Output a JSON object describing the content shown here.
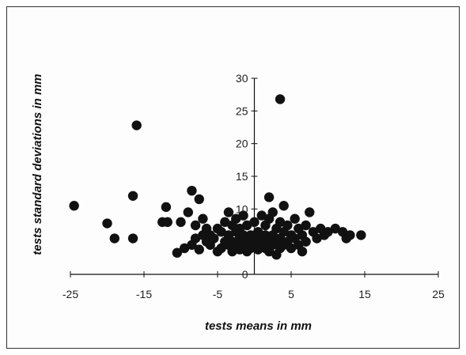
{
  "chart_data": {
    "type": "scatter",
    "xlabel": "tests means in mm",
    "ylabel": "tests standard deviations in mm",
    "xlim": [
      -25,
      25
    ],
    "ylim": [
      0,
      30
    ],
    "x_ticks": [
      "-25",
      "-15",
      "-5",
      "5",
      "15",
      "25"
    ],
    "y_ticks": [
      "0",
      "5",
      "10",
      "15",
      "20",
      "25",
      "30"
    ],
    "grid": false,
    "legend": "none",
    "marker_color": "#111111",
    "points": [
      {
        "x": -24.5,
        "y": 10.5
      },
      {
        "x": -20,
        "y": 7.8
      },
      {
        "x": -19,
        "y": 5.5
      },
      {
        "x": -16.5,
        "y": 5.5
      },
      {
        "x": -16.5,
        "y": 12
      },
      {
        "x": -16,
        "y": 22.8
      },
      {
        "x": -12.5,
        "y": 8
      },
      {
        "x": -12,
        "y": 10.3
      },
      {
        "x": -11.8,
        "y": 8
      },
      {
        "x": -10.5,
        "y": 3.3
      },
      {
        "x": -10,
        "y": 8
      },
      {
        "x": -9.5,
        "y": 4
      },
      {
        "x": -9,
        "y": 9.5
      },
      {
        "x": -8.5,
        "y": 12.8
      },
      {
        "x": -8.5,
        "y": 4.5
      },
      {
        "x": -8,
        "y": 5.5
      },
      {
        "x": -8,
        "y": 7.5
      },
      {
        "x": -7.5,
        "y": 11.5
      },
      {
        "x": -7.5,
        "y": 3.8
      },
      {
        "x": -7,
        "y": 6
      },
      {
        "x": -7,
        "y": 8.5
      },
      {
        "x": -6.5,
        "y": 5
      },
      {
        "x": -6.5,
        "y": 7
      },
      {
        "x": -6,
        "y": 4.5
      },
      {
        "x": -6,
        "y": 6
      },
      {
        "x": -5.5,
        "y": 5.5
      },
      {
        "x": -5,
        "y": 3.5
      },
      {
        "x": -5,
        "y": 7
      },
      {
        "x": -4.5,
        "y": 4
      },
      {
        "x": -4.5,
        "y": 6.5
      },
      {
        "x": -4,
        "y": 5
      },
      {
        "x": -4,
        "y": 8
      },
      {
        "x": -3.5,
        "y": 4.5
      },
      {
        "x": -3.5,
        "y": 6
      },
      {
        "x": -3.5,
        "y": 9.5
      },
      {
        "x": -3,
        "y": 3.5
      },
      {
        "x": -3,
        "y": 5
      },
      {
        "x": -3,
        "y": 7.5
      },
      {
        "x": -2.5,
        "y": 4.5
      },
      {
        "x": -2.5,
        "y": 6.5
      },
      {
        "x": -2.5,
        "y": 8.5
      },
      {
        "x": -2,
        "y": 3.8
      },
      {
        "x": -2,
        "y": 5.5
      },
      {
        "x": -2,
        "y": 7
      },
      {
        "x": -1.5,
        "y": 4.5
      },
      {
        "x": -1.5,
        "y": 6
      },
      {
        "x": -1.5,
        "y": 9
      },
      {
        "x": -1,
        "y": 3.5
      },
      {
        "x": -1,
        "y": 5
      },
      {
        "x": -1,
        "y": 7.5
      },
      {
        "x": -0.5,
        "y": 4
      },
      {
        "x": -0.5,
        "y": 6
      },
      {
        "x": 0,
        "y": 4.5
      },
      {
        "x": 0,
        "y": 5.5
      },
      {
        "x": 0,
        "y": 8
      },
      {
        "x": 0.5,
        "y": 3.8
      },
      {
        "x": 0.5,
        "y": 6.5
      },
      {
        "x": 1,
        "y": 4.5
      },
      {
        "x": 1,
        "y": 5.5
      },
      {
        "x": 1,
        "y": 9
      },
      {
        "x": 1.5,
        "y": 4
      },
      {
        "x": 1.5,
        "y": 6
      },
      {
        "x": 1.5,
        "y": 7.5
      },
      {
        "x": 2,
        "y": 3.5
      },
      {
        "x": 2,
        "y": 5
      },
      {
        "x": 2,
        "y": 8.5
      },
      {
        "x": 2,
        "y": 11.8
      },
      {
        "x": 2.5,
        "y": 4.5
      },
      {
        "x": 2.5,
        "y": 6
      },
      {
        "x": 2.5,
        "y": 9.5
      },
      {
        "x": 3,
        "y": 3
      },
      {
        "x": 3,
        "y": 5
      },
      {
        "x": 3,
        "y": 7
      },
      {
        "x": 3.5,
        "y": 4
      },
      {
        "x": 3.5,
        "y": 5.5
      },
      {
        "x": 3.5,
        "y": 8
      },
      {
        "x": 3.5,
        "y": 26.8
      },
      {
        "x": 4,
        "y": 4.5
      },
      {
        "x": 4,
        "y": 6.5
      },
      {
        "x": 4,
        "y": 10.5
      },
      {
        "x": 4.5,
        "y": 5
      },
      {
        "x": 4.5,
        "y": 7.5
      },
      {
        "x": 5,
        "y": 4
      },
      {
        "x": 5,
        "y": 6
      },
      {
        "x": 5.5,
        "y": 5.5
      },
      {
        "x": 5.5,
        "y": 8.5
      },
      {
        "x": 6,
        "y": 4.5
      },
      {
        "x": 6,
        "y": 7
      },
      {
        "x": 6.5,
        "y": 3.5
      },
      {
        "x": 6.5,
        "y": 6
      },
      {
        "x": 7,
        "y": 5
      },
      {
        "x": 7,
        "y": 7.5
      },
      {
        "x": 7.5,
        "y": 9.5
      },
      {
        "x": 8,
        "y": 6.5
      },
      {
        "x": 8.5,
        "y": 5.5
      },
      {
        "x": 9,
        "y": 7
      },
      {
        "x": 9.5,
        "y": 6
      },
      {
        "x": 10,
        "y": 6.5
      },
      {
        "x": 11,
        "y": 7
      },
      {
        "x": 12,
        "y": 6.5
      },
      {
        "x": 12.5,
        "y": 5.5
      },
      {
        "x": 13,
        "y": 6
      },
      {
        "x": 14.5,
        "y": 6
      }
    ]
  }
}
